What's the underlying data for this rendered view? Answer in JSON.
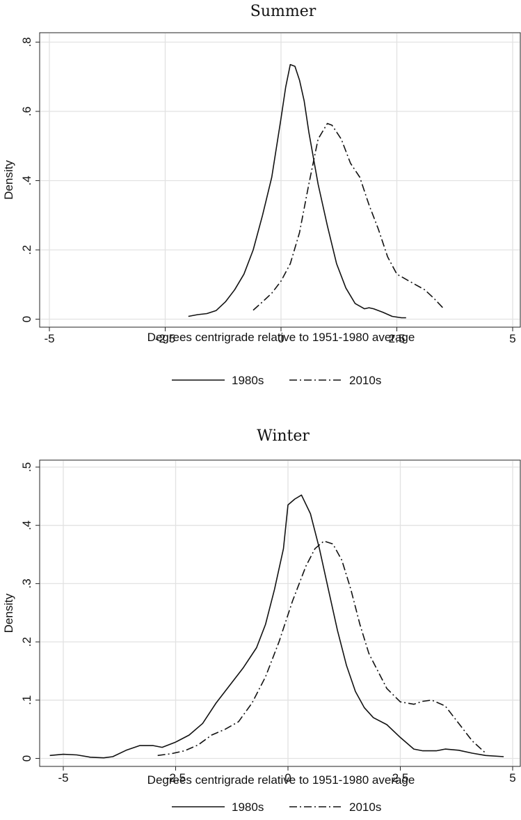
{
  "chart_data": [
    {
      "type": "line",
      "title": "Summer",
      "xlabel": "Degrees centrigrade relative to 1951-1980 average",
      "ylabel": "Density",
      "xlim": [
        -5,
        5
      ],
      "ylim": [
        0,
        0.8
      ],
      "x_ticks": [
        -5,
        -2.5,
        0,
        2.5,
        5
      ],
      "x_tick_labels": [
        "-5",
        "-2.5",
        "0",
        "2.5",
        "5"
      ],
      "y_ticks": [
        0,
        0.2,
        0.4,
        0.6,
        0.8
      ],
      "y_tick_labels": [
        "0",
        ".2",
        ".4",
        ".6",
        ".8"
      ],
      "grid": true,
      "legend_position": "bottom",
      "series": [
        {
          "name": "1980s",
          "style": "solid",
          "points": [
            [
              -2.0,
              0.008
            ],
            [
              -1.8,
              0.013
            ],
            [
              -1.6,
              0.016
            ],
            [
              -1.4,
              0.025
            ],
            [
              -1.2,
              0.05
            ],
            [
              -1.0,
              0.085
            ],
            [
              -0.8,
              0.13
            ],
            [
              -0.6,
              0.2
            ],
            [
              -0.4,
              0.3
            ],
            [
              -0.2,
              0.41
            ],
            [
              0.0,
              0.58
            ],
            [
              0.1,
              0.67
            ],
            [
              0.2,
              0.735
            ],
            [
              0.3,
              0.73
            ],
            [
              0.4,
              0.69
            ],
            [
              0.5,
              0.63
            ],
            [
              0.6,
              0.54
            ],
            [
              0.8,
              0.39
            ],
            [
              1.0,
              0.27
            ],
            [
              1.2,
              0.16
            ],
            [
              1.4,
              0.09
            ],
            [
              1.6,
              0.045
            ],
            [
              1.8,
              0.03
            ],
            [
              1.9,
              0.033
            ],
            [
              2.0,
              0.03
            ],
            [
              2.2,
              0.02
            ],
            [
              2.4,
              0.008
            ],
            [
              2.6,
              0.004
            ],
            [
              2.7,
              0.004
            ]
          ]
        },
        {
          "name": "2010s",
          "style": "dash-dot",
          "points": [
            [
              -0.6,
              0.026
            ],
            [
              -0.4,
              0.05
            ],
            [
              -0.2,
              0.075
            ],
            [
              0.0,
              0.11
            ],
            [
              0.2,
              0.16
            ],
            [
              0.4,
              0.25
            ],
            [
              0.6,
              0.39
            ],
            [
              0.8,
              0.52
            ],
            [
              1.0,
              0.565
            ],
            [
              1.1,
              0.56
            ],
            [
              1.3,
              0.52
            ],
            [
              1.5,
              0.45
            ],
            [
              1.7,
              0.41
            ],
            [
              1.9,
              0.33
            ],
            [
              2.1,
              0.26
            ],
            [
              2.3,
              0.18
            ],
            [
              2.5,
              0.13
            ],
            [
              2.7,
              0.115
            ],
            [
              2.9,
              0.1
            ],
            [
              3.1,
              0.085
            ],
            [
              3.3,
              0.06
            ],
            [
              3.5,
              0.032
            ]
          ]
        }
      ]
    },
    {
      "type": "line",
      "title": "Winter",
      "xlabel": "Degrees centrigrade relative to 1951-1980 average",
      "ylabel": "Density",
      "xlim": [
        -5,
        5
      ],
      "ylim": [
        0,
        0.5
      ],
      "x_ticks": [
        -5,
        -2.5,
        0,
        2.5,
        5
      ],
      "x_tick_labels": [
        "-5",
        "-2.5",
        "0",
        "2.5",
        "5"
      ],
      "y_ticks": [
        0,
        0.1,
        0.2,
        0.3,
        0.4,
        0.5
      ],
      "y_tick_labels": [
        "0",
        ".1",
        ".2",
        ".3",
        ".4",
        ".5"
      ],
      "grid": true,
      "legend_position": "bottom",
      "series": [
        {
          "name": "1980s",
          "style": "solid",
          "points": [
            [
              -5.3,
              0.005
            ],
            [
              -5.0,
              0.007
            ],
            [
              -4.7,
              0.006
            ],
            [
              -4.4,
              0.002
            ],
            [
              -4.1,
              0.001
            ],
            [
              -3.9,
              0.003
            ],
            [
              -3.6,
              0.014
            ],
            [
              -3.3,
              0.022
            ],
            [
              -3.0,
              0.022
            ],
            [
              -2.8,
              0.019
            ],
            [
              -2.5,
              0.028
            ],
            [
              -2.2,
              0.04
            ],
            [
              -1.9,
              0.06
            ],
            [
              -1.6,
              0.095
            ],
            [
              -1.3,
              0.125
            ],
            [
              -1.0,
              0.155
            ],
            [
              -0.7,
              0.19
            ],
            [
              -0.5,
              0.23
            ],
            [
              -0.3,
              0.29
            ],
            [
              -0.1,
              0.36
            ],
            [
              0.0,
              0.435
            ],
            [
              0.15,
              0.445
            ],
            [
              0.3,
              0.452
            ],
            [
              0.5,
              0.42
            ],
            [
              0.7,
              0.36
            ],
            [
              0.9,
              0.29
            ],
            [
              1.1,
              0.22
            ],
            [
              1.3,
              0.16
            ],
            [
              1.5,
              0.115
            ],
            [
              1.7,
              0.087
            ],
            [
              1.9,
              0.07
            ],
            [
              2.2,
              0.058
            ],
            [
              2.5,
              0.036
            ],
            [
              2.8,
              0.016
            ],
            [
              3.0,
              0.013
            ],
            [
              3.3,
              0.013
            ],
            [
              3.5,
              0.016
            ],
            [
              3.8,
              0.014
            ],
            [
              4.1,
              0.009
            ],
            [
              4.4,
              0.005
            ],
            [
              4.8,
              0.003
            ]
          ]
        },
        {
          "name": "2010s",
          "style": "dash-dot",
          "points": [
            [
              -2.9,
              0.005
            ],
            [
              -2.6,
              0.008
            ],
            [
              -2.3,
              0.013
            ],
            [
              -2.0,
              0.023
            ],
            [
              -1.7,
              0.04
            ],
            [
              -1.4,
              0.05
            ],
            [
              -1.1,
              0.063
            ],
            [
              -0.8,
              0.095
            ],
            [
              -0.5,
              0.14
            ],
            [
              -0.2,
              0.2
            ],
            [
              0.1,
              0.27
            ],
            [
              0.4,
              0.33
            ],
            [
              0.6,
              0.36
            ],
            [
              0.8,
              0.373
            ],
            [
              1.0,
              0.368
            ],
            [
              1.2,
              0.34
            ],
            [
              1.4,
              0.29
            ],
            [
              1.6,
              0.23
            ],
            [
              1.8,
              0.18
            ],
            [
              2.0,
              0.15
            ],
            [
              2.2,
              0.12
            ],
            [
              2.5,
              0.097
            ],
            [
              2.8,
              0.093
            ],
            [
              3.0,
              0.098
            ],
            [
              3.2,
              0.1
            ],
            [
              3.5,
              0.09
            ],
            [
              3.8,
              0.06
            ],
            [
              4.1,
              0.03
            ],
            [
              4.4,
              0.009
            ]
          ]
        }
      ]
    }
  ]
}
